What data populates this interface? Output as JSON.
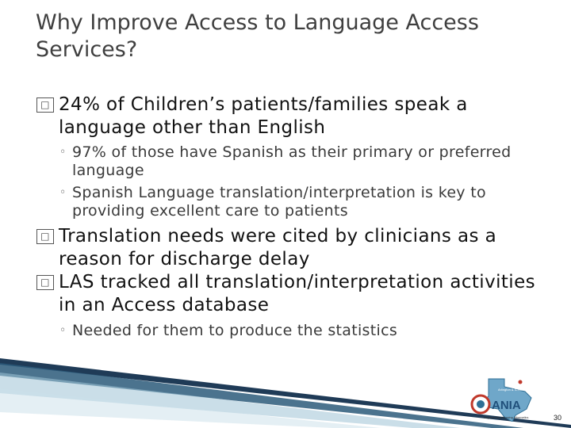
{
  "title": "Why Improve Access to Language Access Services?",
  "bullets": [
    {
      "marker": "□",
      "text": "24% of Children’s patients/families speak a language other than English",
      "sub": [
        "97% of those have Spanish as their primary or preferred language",
        "Spanish Language translation/interpretation is key to providing excellent care to patients"
      ]
    },
    {
      "marker": "□",
      "text": "Translation needs were cited by clinicians as a reason for discharge delay",
      "sub": []
    },
    {
      "marker": "□",
      "text": "LAS tracked all translation/interpretation activities in an Access database",
      "sub": [
        "Needed for them to produce the statistics"
      ]
    }
  ],
  "sub_marker": "◦",
  "logo": {
    "text": "ANIA",
    "top_text": "Arlington & Southside",
    "bottom_text": "Representing Nursing Informatics"
  },
  "page_number": "30",
  "colors": {
    "title": "#3f3f3f",
    "decor_dark": "#1f3b57",
    "decor_light": "#9fc3d6"
  }
}
